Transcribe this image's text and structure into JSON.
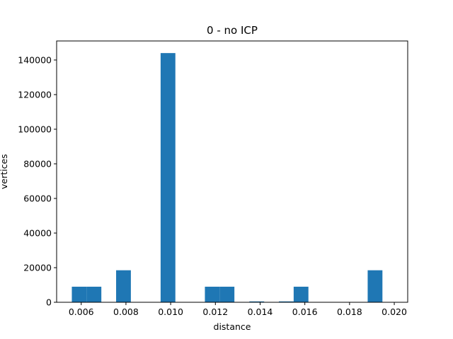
{
  "chart_data": {
    "type": "bar",
    "title": "0 - no ICP",
    "xlabel": "distance",
    "ylabel": "vertices",
    "xlim": [
      0.0049,
      0.0206
    ],
    "ylim": [
      0,
      151000
    ],
    "xticks": [
      "0.006",
      "0.008",
      "0.010",
      "0.012",
      "0.014",
      "0.016",
      "0.018",
      "0.020"
    ],
    "yticks": [
      "0",
      "20000",
      "40000",
      "60000",
      "80000",
      "100000",
      "120000",
      "140000"
    ],
    "grid": false,
    "bar_color": "#1f77b4",
    "bins": [
      {
        "x0": 0.00558,
        "x1": 0.00624,
        "value": 9000
      },
      {
        "x0": 0.00624,
        "x1": 0.0069,
        "value": 9000
      },
      {
        "x0": 0.00756,
        "x1": 0.00822,
        "value": 18500
      },
      {
        "x0": 0.00955,
        "x1": 0.01021,
        "value": 144000
      },
      {
        "x0": 0.01153,
        "x1": 0.01219,
        "value": 9000
      },
      {
        "x0": 0.01219,
        "x1": 0.01285,
        "value": 9000
      },
      {
        "x0": 0.01352,
        "x1": 0.01418,
        "value": 500
      },
      {
        "x0": 0.01484,
        "x1": 0.0155,
        "value": 500
      },
      {
        "x0": 0.0155,
        "x1": 0.01616,
        "value": 9000
      },
      {
        "x0": 0.01881,
        "x1": 0.01947,
        "value": 18500
      }
    ]
  }
}
